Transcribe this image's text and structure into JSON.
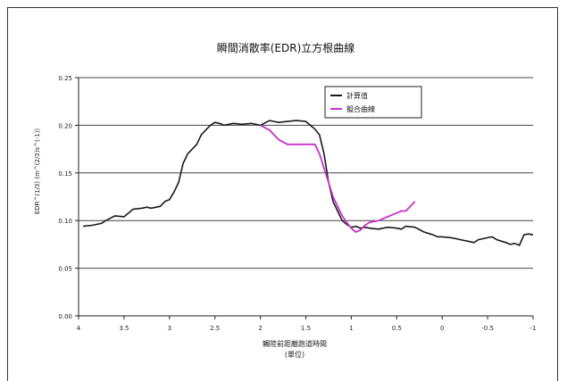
{
  "chart_data": {
    "type": "line",
    "title": "瞬間消散率(EDR)立方根曲線",
    "xlabel": "觸陸前距離跑道時間",
    "xlabel_sub": "(單位)",
    "ylabel": "EDR^(1/3) (m^(2/3)s^(-1))",
    "xlim": [
      4,
      -1
    ],
    "ylim": [
      0,
      0.25
    ],
    "xticks": [
      4,
      3.5,
      3,
      2.5,
      2,
      1.5,
      1,
      0.5,
      0,
      -0.5,
      -1
    ],
    "xtick_labels": [
      "4",
      "3.5",
      "3",
      "2.5",
      "2",
      "1.5",
      "1",
      "0.5",
      "0",
      "-0.5",
      "-1"
    ],
    "yticks": [
      0,
      0.05,
      0.1,
      0.15,
      0.2,
      0.25
    ],
    "ytick_labels": [
      "0.00",
      "0.05",
      "0.10",
      "0.15",
      "0.20",
      "0.25"
    ],
    "grid": "horizontal",
    "legend_position": "top-right",
    "series": [
      {
        "name": "計算值",
        "color": "#1a1a1a",
        "x": [
          3.95,
          3.85,
          3.75,
          3.7,
          3.6,
          3.5,
          3.45,
          3.4,
          3.3,
          3.25,
          3.2,
          3.1,
          3.05,
          3.0,
          2.95,
          2.9,
          2.85,
          2.8,
          2.75,
          2.7,
          2.65,
          2.6,
          2.55,
          2.5,
          2.45,
          2.4,
          2.3,
          2.2,
          2.1,
          2.0,
          1.9,
          1.8,
          1.7,
          1.6,
          1.5,
          1.45,
          1.4,
          1.35,
          1.3,
          1.25,
          1.2,
          1.15,
          1.1,
          1.05,
          1.0,
          0.95,
          0.9,
          0.85,
          0.8,
          0.7,
          0.6,
          0.5,
          0.45,
          0.4,
          0.3,
          0.2,
          0.1,
          0.05,
          0.0,
          -0.1,
          -0.2,
          -0.3,
          -0.35,
          -0.4,
          -0.5,
          -0.55,
          -0.6,
          -0.7,
          -0.75,
          -0.8,
          -0.85,
          -0.9,
          -0.95,
          -1.0
        ],
        "y": [
          0.094,
          0.095,
          0.097,
          0.1,
          0.105,
          0.104,
          0.108,
          0.112,
          0.113,
          0.114,
          0.113,
          0.115,
          0.12,
          0.122,
          0.13,
          0.14,
          0.16,
          0.17,
          0.175,
          0.18,
          0.19,
          0.195,
          0.2,
          0.203,
          0.202,
          0.2,
          0.202,
          0.201,
          0.202,
          0.2,
          0.205,
          0.203,
          0.204,
          0.205,
          0.204,
          0.2,
          0.196,
          0.19,
          0.17,
          0.14,
          0.12,
          0.11,
          0.1,
          0.096,
          0.093,
          0.094,
          0.092,
          0.093,
          0.092,
          0.091,
          0.093,
          0.092,
          0.091,
          0.094,
          0.093,
          0.088,
          0.085,
          0.083,
          0.083,
          0.082,
          0.08,
          0.078,
          0.077,
          0.08,
          0.082,
          0.083,
          0.08,
          0.077,
          0.075,
          0.076,
          0.074,
          0.085,
          0.086,
          0.085
        ]
      },
      {
        "name": "擬合曲線",
        "color": "#c832c8",
        "x": [
          2.0,
          1.9,
          1.8,
          1.7,
          1.6,
          1.5,
          1.4,
          1.35,
          1.3,
          1.25,
          1.2,
          1.15,
          1.1,
          1.05,
          1.0,
          0.95,
          0.9,
          0.85,
          0.8,
          0.7,
          0.6,
          0.5,
          0.45,
          0.4,
          0.35,
          0.3
        ],
        "y": [
          0.2,
          0.195,
          0.185,
          0.18,
          0.18,
          0.18,
          0.18,
          0.17,
          0.155,
          0.14,
          0.125,
          0.115,
          0.105,
          0.098,
          0.092,
          0.088,
          0.09,
          0.095,
          0.098,
          0.1,
          0.104,
          0.108,
          0.11,
          0.11,
          0.115,
          0.12
        ]
      }
    ]
  }
}
